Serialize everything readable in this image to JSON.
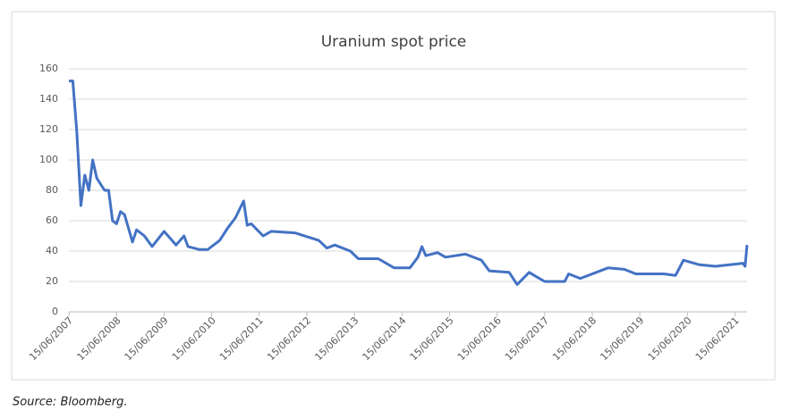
{
  "chart_data": {
    "type": "line",
    "title": "Uranium spot price",
    "source": "Source: Bloomberg.",
    "x": [
      "15/06/2007",
      "15/07/2007",
      "15/08/2007",
      "15/09/2007",
      "15/10/2007",
      "15/11/2007",
      "15/12/2007",
      "15/01/2008",
      "15/03/2008",
      "15/04/2008",
      "15/05/2008",
      "15/06/2008",
      "15/07/2008",
      "15/08/2008",
      "15/10/2008",
      "15/11/2008",
      "15/01/2009",
      "15/03/2009",
      "15/06/2009",
      "15/09/2009",
      "15/11/2009",
      "15/12/2009",
      "15/03/2010",
      "15/05/2010",
      "15/08/2010",
      "15/10/2010",
      "15/12/2010",
      "15/02/2011",
      "15/03/2011",
      "15/04/2011",
      "15/07/2011",
      "15/09/2011",
      "15/03/2012",
      "15/09/2012",
      "15/11/2012",
      "15/01/2013",
      "15/05/2013",
      "15/07/2013",
      "15/12/2013",
      "15/04/2014",
      "15/08/2014",
      "15/10/2014",
      "15/11/2014",
      "15/12/2014",
      "15/03/2015",
      "15/05/2015",
      "15/10/2015",
      "15/02/2016",
      "15/04/2016",
      "15/09/2016",
      "15/11/2016",
      "15/02/2017",
      "15/04/2017",
      "15/06/2017",
      "15/11/2017",
      "15/12/2017",
      "15/03/2018",
      "15/07/2018",
      "15/10/2018",
      "15/02/2019",
      "15/05/2019",
      "15/12/2019",
      "15/03/2020",
      "15/05/2020",
      "15/09/2020",
      "15/01/2021",
      "15/08/2021",
      "31/08/2021",
      "15/09/2021"
    ],
    "series": [
      {
        "name": "Uranium spot price",
        "color": "#4472c4",
        "values": [
          152,
          152,
          118,
          70,
          90,
          80,
          100,
          88,
          80,
          80,
          60,
          58,
          66,
          64,
          46,
          54,
          50,
          43,
          53,
          44,
          50,
          43,
          41,
          41,
          47,
          55,
          62,
          73,
          57,
          58,
          50,
          53,
          52,
          47,
          42,
          44,
          40,
          35,
          35,
          29,
          29,
          36,
          43,
          37,
          39,
          36,
          38,
          34,
          27,
          26,
          18,
          26,
          23,
          20,
          20,
          25,
          22,
          26,
          29,
          28,
          25,
          25,
          24,
          34,
          31,
          30,
          32,
          30,
          44
        ]
      }
    ],
    "xlim": [
      "15/06/2007",
      "15/09/2021"
    ],
    "xticks": [
      "15/06/2007",
      "15/06/2008",
      "15/06/2009",
      "15/06/2010",
      "15/06/2011",
      "15/06/2012",
      "15/06/2013",
      "15/06/2014",
      "15/06/2015",
      "15/06/2016",
      "15/06/2017",
      "15/06/2018",
      "15/06/2019",
      "15/06/2020",
      "15/06/2021"
    ],
    "ylim": [
      0,
      160
    ],
    "yticks": [
      0,
      20,
      40,
      60,
      80,
      100,
      120,
      140,
      160
    ],
    "grid": true
  }
}
